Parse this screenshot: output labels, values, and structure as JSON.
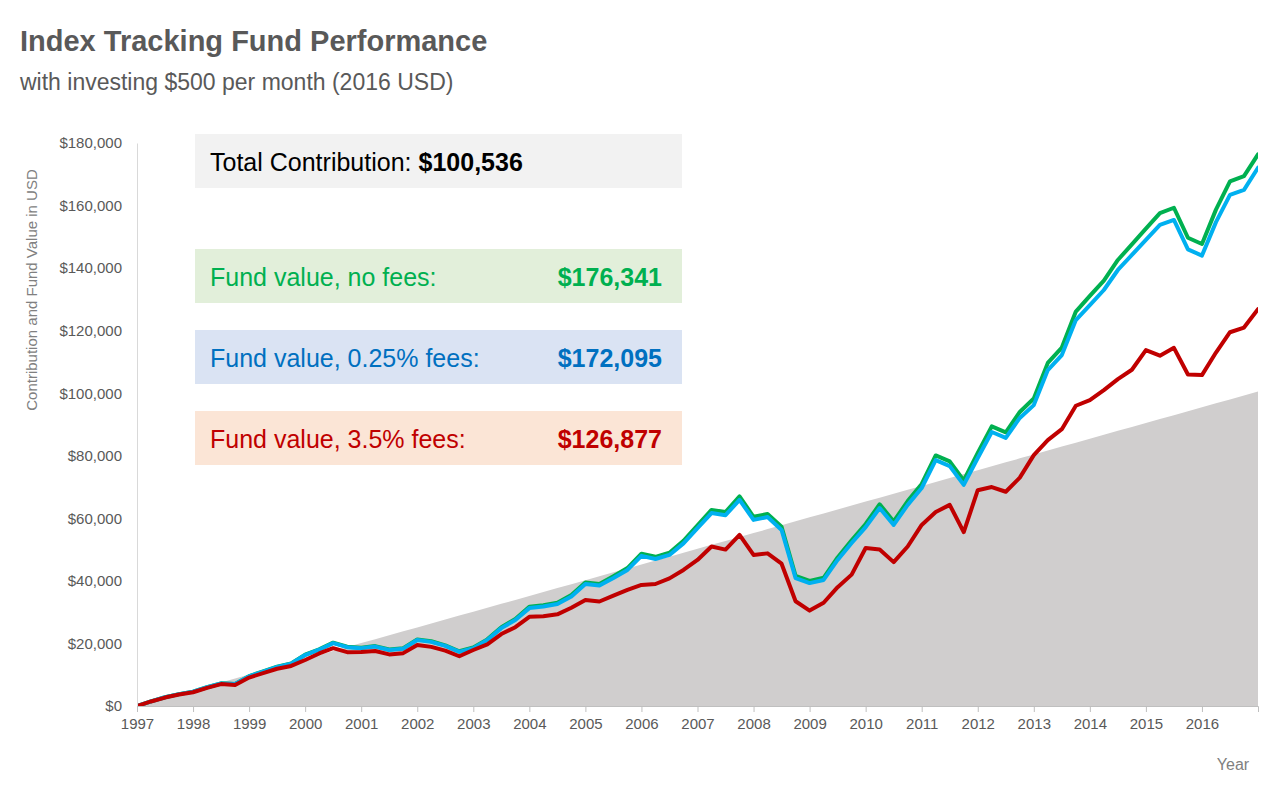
{
  "chart_data": {
    "type": "line",
    "title": "Index Tracking Fund Performance",
    "subtitle": "with investing $500 per month (2016 USD)",
    "y_label": "Contribution and Fund Value in USD",
    "x_label": "Year",
    "grid": false,
    "xlim": [
      1997,
      2017
    ],
    "xticks": [
      1997,
      1998,
      1999,
      2000,
      2001,
      2002,
      2003,
      2004,
      2005,
      2006,
      2007,
      2008,
      2009,
      2010,
      2011,
      2012,
      2013,
      2014,
      2015,
      2016
    ],
    "ylim": [
      0,
      180000
    ],
    "yticks": [
      {
        "value": 0,
        "label": "$0"
      },
      {
        "value": 20000,
        "label": "$20,000"
      },
      {
        "value": 40000,
        "label": "$40,000"
      },
      {
        "value": 60000,
        "label": "$60,000"
      },
      {
        "value": 80000,
        "label": "$80,000"
      },
      {
        "value": 100000,
        "label": "$100,000"
      },
      {
        "value": 120000,
        "label": "$120,000"
      },
      {
        "value": 140000,
        "label": "$140,000"
      },
      {
        "value": 160000,
        "label": "$160,000"
      },
      {
        "value": 180000,
        "label": "$180,000"
      }
    ],
    "x": [
      1997,
      1997.25,
      1997.5,
      1997.75,
      1998,
      1998.25,
      1998.5,
      1998.75,
      1999,
      1999.25,
      1999.5,
      1999.75,
      2000,
      2000.25,
      2000.5,
      2000.75,
      2001,
      2001.25,
      2001.5,
      2001.75,
      2002,
      2002.25,
      2002.5,
      2002.75,
      2003,
      2003.25,
      2003.5,
      2003.75,
      2004,
      2004.25,
      2004.5,
      2004.75,
      2005,
      2005.25,
      2005.5,
      2005.75,
      2006,
      2006.25,
      2006.5,
      2006.75,
      2007,
      2007.25,
      2007.5,
      2007.75,
      2008,
      2008.25,
      2008.5,
      2008.75,
      2009,
      2009.25,
      2009.5,
      2009.75,
      2010,
      2010.25,
      2010.5,
      2010.75,
      2011,
      2011.25,
      2011.5,
      2011.75,
      2012,
      2012.25,
      2012.5,
      2012.75,
      2013,
      2013.25,
      2013.5,
      2013.75,
      2014,
      2014.25,
      2014.5,
      2014.75,
      2015,
      2015.25,
      2015.5,
      2015.75,
      2016,
      2016.25,
      2016.5,
      2016.75,
      2017
    ],
    "series": [
      {
        "name": "Total Contribution:",
        "total_label": "$100,536",
        "type": "area",
        "color": "#d0cece",
        "values": [
          0,
          1260,
          2510,
          3770,
          5030,
          6280,
          7540,
          8800,
          10050,
          11310,
          12570,
          13820,
          15080,
          16340,
          17590,
          18850,
          20110,
          21360,
          22620,
          23880,
          25130,
          26390,
          27650,
          28900,
          30160,
          31420,
          32670,
          33930,
          35190,
          36440,
          37700,
          38960,
          40210,
          41470,
          42730,
          43980,
          45240,
          46500,
          47750,
          49010,
          50270,
          51520,
          52780,
          54040,
          55290,
          56550,
          57810,
          59060,
          60320,
          61580,
          62830,
          64090,
          65350,
          66600,
          67860,
          69120,
          70370,
          71630,
          72890,
          74140,
          75400,
          76660,
          77910,
          79170,
          80430,
          81680,
          82940,
          84200,
          85450,
          86710,
          87970,
          89220,
          90480,
          91740,
          92990,
          94250,
          95510,
          96760,
          98020,
          99280,
          100536
        ]
      },
      {
        "name": "Fund value, no fees:",
        "total_label": "$176,341",
        "type": "line",
        "color": "#00b050",
        "values": [
          0,
          1500,
          2800,
          3800,
          4600,
          6000,
          7250,
          7050,
          9550,
          11100,
          12600,
          13600,
          16400,
          18100,
          20250,
          18950,
          18650,
          19150,
          18050,
          18450,
          21300,
          20700,
          19400,
          17500,
          18700,
          21300,
          25200,
          27800,
          31700,
          32200,
          33000,
          35500,
          39500,
          39000,
          41500,
          44100,
          48700,
          47700,
          49000,
          52800,
          57800,
          62700,
          62000,
          67000,
          60500,
          61400,
          57300,
          41600,
          40000,
          41000,
          47500,
          53000,
          58200,
          64500,
          59000,
          65500,
          71000,
          80100,
          78200,
          72100,
          80900,
          89400,
          87500,
          94000,
          98300,
          109700,
          114600,
          126100,
          131100,
          136000,
          142600,
          147600,
          152600,
          157600,
          159300,
          149700,
          147700,
          158700,
          167700,
          169400,
          176341
        ]
      },
      {
        "name": "Fund value, 0.25% fees:",
        "total_label": "$172,095",
        "type": "line",
        "color": "#00b0f0",
        "values": [
          0,
          1500,
          2800,
          3800,
          4600,
          6000,
          7200,
          7000,
          9500,
          11000,
          12500,
          13500,
          16300,
          18000,
          20100,
          18800,
          18500,
          19000,
          17900,
          18300,
          21100,
          20500,
          19200,
          17300,
          18500,
          21100,
          24900,
          27500,
          31300,
          31800,
          32600,
          35000,
          39000,
          38500,
          40900,
          43500,
          48000,
          47000,
          48300,
          52000,
          56900,
          61700,
          61000,
          65900,
          59500,
          60400,
          56300,
          40900,
          39300,
          40300,
          46700,
          52100,
          57200,
          63300,
          57900,
          64300,
          69700,
          78600,
          76700,
          70700,
          79300,
          87600,
          85700,
          92100,
          96200,
          107400,
          112200,
          123400,
          128200,
          133000,
          139400,
          144200,
          149000,
          153800,
          155400,
          146000,
          144000,
          154700,
          163400,
          165000,
          172095
        ]
      },
      {
        "name": "Fund value, 3.5% fees:",
        "total_label": "$126,877",
        "type": "line",
        "color": "#c00000",
        "values": [
          0,
          1450,
          2700,
          3700,
          4400,
          5800,
          7000,
          6700,
          9100,
          10500,
          11900,
          12800,
          14700,
          16800,
          18500,
          17200,
          17300,
          17600,
          16500,
          16900,
          19500,
          18900,
          17700,
          15900,
          17900,
          19700,
          23000,
          25200,
          28500,
          28700,
          29300,
          31400,
          33900,
          33400,
          35300,
          37100,
          38700,
          39000,
          40800,
          43500,
          46700,
          51000,
          50000,
          54700,
          48300,
          48800,
          45500,
          33500,
          30500,
          33000,
          38000,
          42000,
          50500,
          50000,
          46000,
          51000,
          57900,
          62000,
          64300,
          55600,
          69000,
          70000,
          68500,
          73000,
          80200,
          85000,
          88500,
          96000,
          97800,
          101000,
          104500,
          107500,
          113800,
          112000,
          114500,
          106000,
          105800,
          113000,
          119500,
          121000,
          126877
        ]
      }
    ]
  }
}
